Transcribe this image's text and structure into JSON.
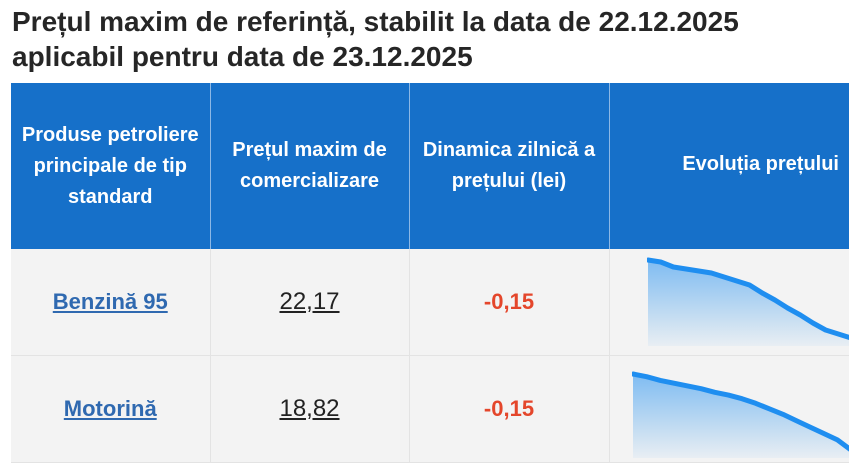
{
  "title": {
    "line1": "Prețul maxim de referință, stabilit la data de 22.12.2025",
    "line2": "aplicabil pentru data de 23.12.2025"
  },
  "table": {
    "headers": [
      "Produse petroliere principale de tip standard",
      "Prețul maxim de comercializare",
      "Dinamica zilnică a prețului (lei)",
      "Evoluția prețului"
    ],
    "rows": [
      {
        "product": "Benzină 95",
        "price": "22,17",
        "delta": "-0,15",
        "trend": [
          22.95,
          22.93,
          22.88,
          22.86,
          22.84,
          22.82,
          22.78,
          22.74,
          22.7,
          22.62,
          22.55,
          22.47,
          22.4,
          22.32,
          22.25,
          22.21,
          22.17
        ]
      },
      {
        "product": "Motorină",
        "price": "18,82",
        "delta": "-0,15",
        "trend": [
          19.65,
          19.62,
          19.58,
          19.55,
          19.52,
          19.49,
          19.45,
          19.42,
          19.38,
          19.33,
          19.27,
          19.21,
          19.14,
          19.07,
          19.0,
          18.93,
          18.82
        ]
      }
    ]
  },
  "colors": {
    "header_bg": "#1670c9",
    "link": "#2f69b0",
    "negative": "#e4462b",
    "sparkline": "#1f8ef0"
  }
}
